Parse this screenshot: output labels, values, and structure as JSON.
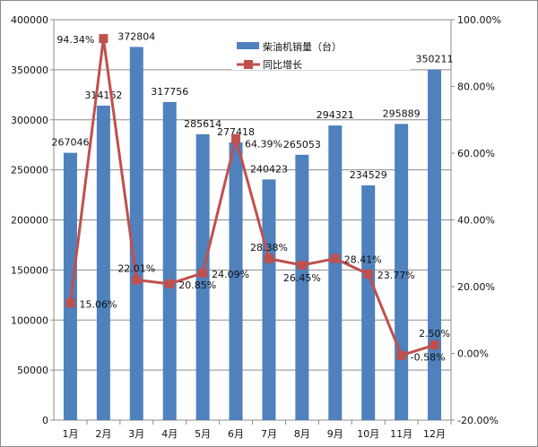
{
  "chart_data": {
    "type": "bar+line",
    "categories": [
      "1月",
      "2月",
      "3月",
      "4月",
      "5月",
      "6月",
      "7月",
      "8月",
      "9月",
      "10月",
      "11月",
      "12月"
    ],
    "series": [
      {
        "name": "柴油机销量（台）",
        "type": "bar",
        "axis": "left",
        "color": "#4f81bd",
        "values": [
          267046,
          314162,
          372804,
          317756,
          285614,
          277418,
          240423,
          265053,
          294321,
          234529,
          295889,
          350211
        ],
        "labels": [
          "267046",
          "314162",
          "372804",
          "317756",
          "285614",
          "277418",
          "240423",
          "265053",
          "294321",
          "234529",
          "295889",
          "350211"
        ]
      },
      {
        "name": "同比增长",
        "type": "line",
        "axis": "right",
        "color": "#c0504d",
        "values": [
          15.06,
          94.34,
          22.01,
          20.85,
          24.09,
          64.39,
          28.38,
          26.45,
          28.41,
          23.77,
          -0.58,
          2.5
        ],
        "labels": [
          "15.06%",
          "94.34%",
          "22.01%",
          "20.85%",
          "24.09%",
          "64.39%",
          "28.38%",
          "26.45%",
          "28.41%",
          "23.77%",
          "-0.58%",
          "2.50%"
        ]
      }
    ],
    "left_axis": {
      "range": [
        0,
        400000
      ],
      "ticks": [
        "0",
        "50000",
        "100000",
        "150000",
        "200000",
        "250000",
        "300000",
        "350000",
        "400000"
      ]
    },
    "right_axis": {
      "range": [
        -20,
        100
      ],
      "ticks": [
        "-20.00%",
        "0.00%",
        "20.00%",
        "40.00%",
        "60.00%",
        "80.00%",
        "100.00%"
      ]
    },
    "grid": true,
    "legend": "top-center"
  }
}
